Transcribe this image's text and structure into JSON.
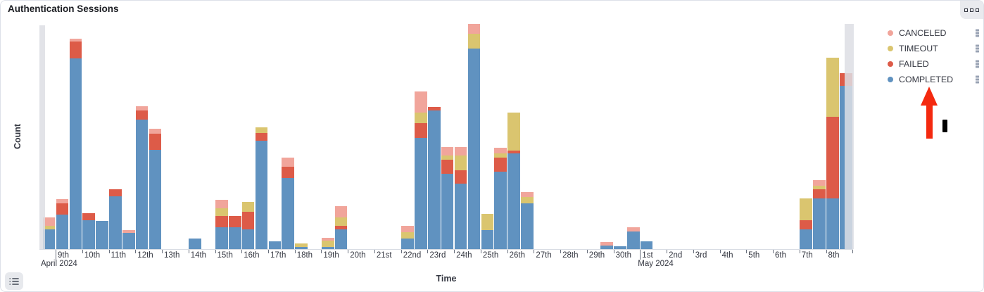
{
  "panel": {
    "title": "Authentication Sessions",
    "options_button": "panel options",
    "legend_toggle_button": "toggle legend"
  },
  "legend": {
    "position": "right",
    "items": [
      {
        "label": "CANCELED",
        "color": "#f1a59b"
      },
      {
        "label": "TIMEOUT",
        "color": "#dac56f"
      },
      {
        "label": "FAILED",
        "color": "#dd5b48"
      },
      {
        "label": "COMPLETED",
        "color": "#6092c0"
      }
    ]
  },
  "annotation": {
    "arrow_color": "#f4290f",
    "arrow_points_at": "COMPLETED legend item"
  },
  "chart_data": {
    "type": "bar",
    "stacked": true,
    "title": "Authentication Sessions",
    "xlabel": "Time",
    "ylabel": "Count",
    "x_axis": {
      "start": "2024-04-08 12:00",
      "end": "2024-05-09 00:00",
      "bucket_interval": "12h"
    },
    "ylim": [
      0,
      330
    ],
    "y_tick_labels": "none shown (values below are relative units estimated from bar heights)",
    "grid": false,
    "series_order_bottom_to_top": [
      "COMPLETED",
      "FAILED",
      "TIMEOUT",
      "CANCELED"
    ],
    "colors": {
      "completed": "#6092c0",
      "failed": "#dd5b48",
      "timeout": "#dac56f",
      "canceled": "#f1a59b"
    },
    "buckets": [
      {
        "t": "Apr 8 PM",
        "slot": 1,
        "completed": 28,
        "failed": 0,
        "timeout": 5,
        "canceled": 12
      },
      {
        "t": "Apr 9 AM",
        "slot": 2,
        "completed": 49,
        "failed": 16,
        "timeout": 0,
        "canceled": 6
      },
      {
        "t": "Apr 9 PM",
        "slot": 3,
        "completed": 271,
        "failed": 24,
        "timeout": 0,
        "canceled": 4
      },
      {
        "t": "Apr 10 AM",
        "slot": 4,
        "completed": 41,
        "failed": 10,
        "timeout": 0,
        "canceled": 0
      },
      {
        "t": "Apr 10 PM",
        "slot": 5,
        "completed": 40,
        "failed": 0,
        "timeout": 0,
        "canceled": 0
      },
      {
        "t": "Apr 11 AM",
        "slot": 6,
        "completed": 75,
        "failed": 10,
        "timeout": 0,
        "canceled": 0
      },
      {
        "t": "Apr 11 PM",
        "slot": 7,
        "completed": 23,
        "failed": 0,
        "timeout": 0,
        "canceled": 4
      },
      {
        "t": "Apr 12 AM",
        "slot": 8,
        "completed": 184,
        "failed": 13,
        "timeout": 0,
        "canceled": 6
      },
      {
        "t": "Apr 12 PM",
        "slot": 9,
        "completed": 141,
        "failed": 23,
        "timeout": 0,
        "canceled": 7
      },
      {
        "t": "Apr 14 AM",
        "slot": 12,
        "completed": 15,
        "failed": 0,
        "timeout": 0,
        "canceled": 0
      },
      {
        "t": "Apr 15 AM",
        "slot": 14,
        "completed": 31,
        "failed": 16,
        "timeout": 11,
        "canceled": 12
      },
      {
        "t": "Apr 15 PM",
        "slot": 15,
        "completed": 31,
        "failed": 16,
        "timeout": 0,
        "canceled": 0
      },
      {
        "t": "Apr 16 AM",
        "slot": 16,
        "completed": 28,
        "failed": 25,
        "timeout": 14,
        "canceled": 0
      },
      {
        "t": "Apr 16 PM",
        "slot": 17,
        "completed": 154,
        "failed": 11,
        "timeout": 8,
        "canceled": 0
      },
      {
        "t": "Apr 17 AM",
        "slot": 18,
        "completed": 11,
        "failed": 0,
        "timeout": 0,
        "canceled": 0
      },
      {
        "t": "Apr 17 PM",
        "slot": 19,
        "completed": 101,
        "failed": 16,
        "timeout": 0,
        "canceled": 13
      },
      {
        "t": "Apr 18 AM",
        "slot": 20,
        "completed": 3,
        "failed": 0,
        "timeout": 5,
        "canceled": 0
      },
      {
        "t": "Apr 19 AM",
        "slot": 22,
        "completed": 3,
        "failed": 0,
        "timeout": 9,
        "canceled": 4
      },
      {
        "t": "Apr 19 PM",
        "slot": 23,
        "completed": 28,
        "failed": 5,
        "timeout": 12,
        "canceled": 16
      },
      {
        "t": "Apr 22 AM",
        "slot": 28,
        "completed": 15,
        "failed": 0,
        "timeout": 9,
        "canceled": 9
      },
      {
        "t": "Apr 22 PM",
        "slot": 29,
        "completed": 158,
        "failed": 21,
        "timeout": 15,
        "canceled": 30
      },
      {
        "t": "Apr 23 AM",
        "slot": 30,
        "completed": 197,
        "failed": 5,
        "timeout": 0,
        "canceled": 0
      },
      {
        "t": "Apr 23 PM",
        "slot": 31,
        "completed": 107,
        "failed": 20,
        "timeout": 6,
        "canceled": 12
      },
      {
        "t": "Apr 24 AM",
        "slot": 32,
        "completed": 93,
        "failed": 19,
        "timeout": 21,
        "canceled": 12
      },
      {
        "t": "Apr 24 PM",
        "slot": 33,
        "completed": 285,
        "failed": 0,
        "timeout": 21,
        "canceled": 14
      },
      {
        "t": "Apr 25 AM",
        "slot": 34,
        "completed": 27,
        "failed": 0,
        "timeout": 23,
        "canceled": 0
      },
      {
        "t": "Apr 25 PM",
        "slot": 35,
        "completed": 110,
        "failed": 20,
        "timeout": 6,
        "canceled": 8
      },
      {
        "t": "Apr 26 AM",
        "slot": 36,
        "completed": 136,
        "failed": 4,
        "timeout": 54,
        "canceled": 0
      },
      {
        "t": "Apr 26 PM",
        "slot": 37,
        "completed": 65,
        "failed": 0,
        "timeout": 9,
        "canceled": 7
      },
      {
        "t": "Apr 29 PM",
        "slot": 43,
        "completed": 5,
        "failed": 0,
        "timeout": 0,
        "canceled": 5
      },
      {
        "t": "Apr 30 AM",
        "slot": 44,
        "completed": 4,
        "failed": 0,
        "timeout": 0,
        "canceled": 0
      },
      {
        "t": "Apr 30 PM",
        "slot": 45,
        "completed": 25,
        "failed": 0,
        "timeout": 0,
        "canceled": 6
      },
      {
        "t": "May 1 AM",
        "slot": 46,
        "completed": 11,
        "failed": 0,
        "timeout": 0,
        "canceled": 0
      },
      {
        "t": "May 7 AM",
        "slot": 58,
        "completed": 28,
        "failed": 13,
        "timeout": 31,
        "canceled": 0
      },
      {
        "t": "May 7 PM",
        "slot": 59,
        "completed": 72,
        "failed": 13,
        "timeout": 5,
        "canceled": 8
      },
      {
        "t": "May 8 AM",
        "slot": 60,
        "completed": 72,
        "failed": 116,
        "timeout": 84,
        "canceled": 0
      },
      {
        "t": "May 8 PM",
        "slot": 61,
        "completed": 232,
        "failed": 18,
        "timeout": 0,
        "canceled": 0
      }
    ],
    "x_ticks": [
      {
        "label": "9th",
        "sub": "April 2024",
        "day": 1
      },
      {
        "label": "10th",
        "day": 2
      },
      {
        "label": "11th",
        "day": 3
      },
      {
        "label": "12th",
        "day": 4
      },
      {
        "label": "13th",
        "day": 5
      },
      {
        "label": "14th",
        "day": 6
      },
      {
        "label": "15th",
        "day": 7
      },
      {
        "label": "16th",
        "day": 8
      },
      {
        "label": "17th",
        "day": 9
      },
      {
        "label": "18th",
        "day": 10
      },
      {
        "label": "19th",
        "day": 11
      },
      {
        "label": "20th",
        "day": 12
      },
      {
        "label": "21st",
        "day": 13
      },
      {
        "label": "22nd",
        "day": 14
      },
      {
        "label": "23rd",
        "day": 15
      },
      {
        "label": "24th",
        "day": 16
      },
      {
        "label": "25th",
        "day": 17
      },
      {
        "label": "26th",
        "day": 18
      },
      {
        "label": "27th",
        "day": 19
      },
      {
        "label": "28th",
        "day": 20
      },
      {
        "label": "29th",
        "day": 21
      },
      {
        "label": "30th",
        "day": 22
      },
      {
        "label": "1st",
        "sub": "May 2024",
        "day": 23
      },
      {
        "label": "2nd",
        "day": 24
      },
      {
        "label": "3rd",
        "day": 25
      },
      {
        "label": "4th",
        "day": 26
      },
      {
        "label": "5th",
        "day": 27
      },
      {
        "label": "6th",
        "day": 28
      },
      {
        "label": "7th",
        "day": 29
      },
      {
        "label": "8th",
        "day": 30
      },
      {
        "label": "",
        "day": 31
      }
    ]
  }
}
